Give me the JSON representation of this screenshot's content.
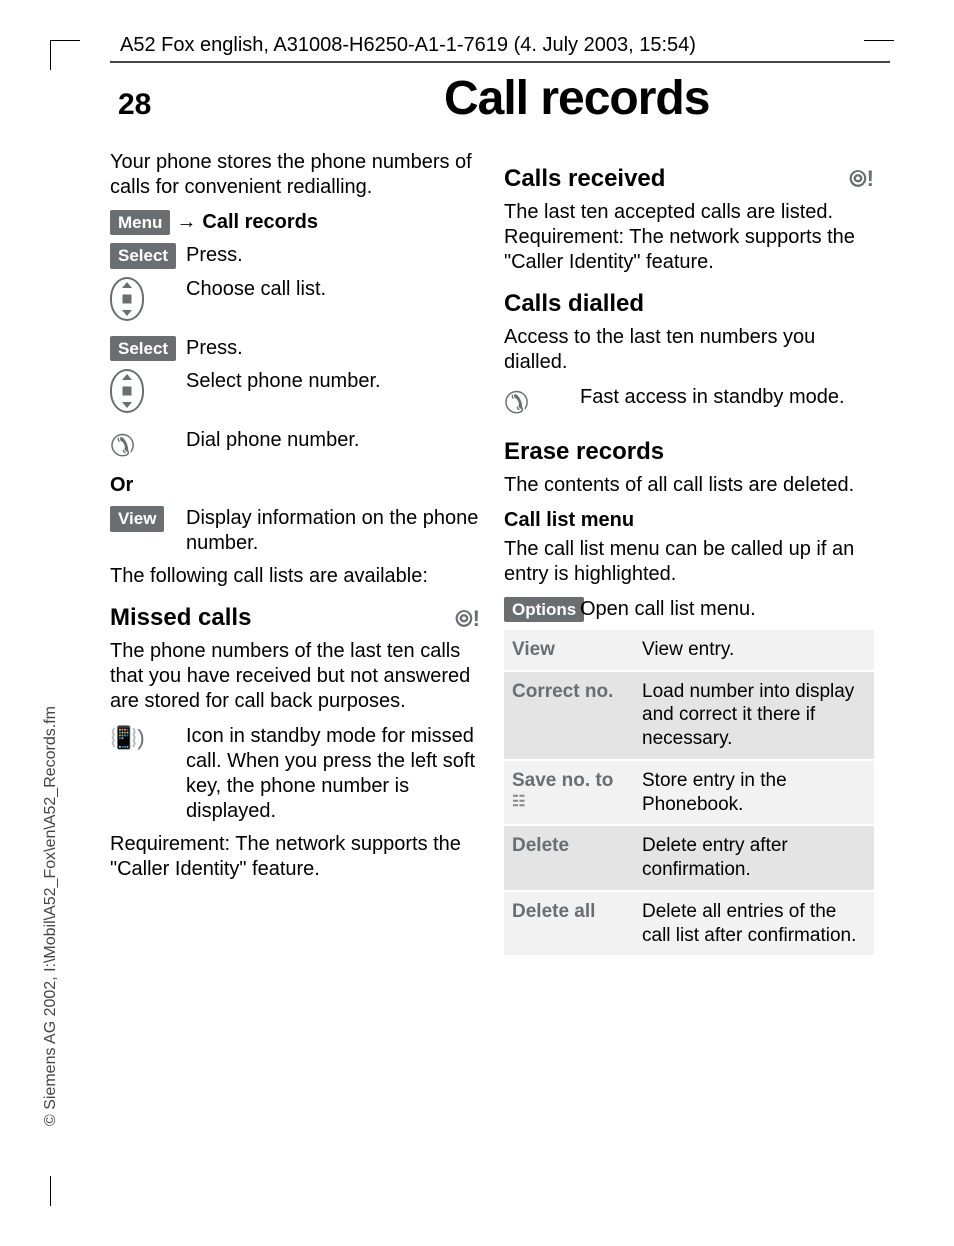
{
  "header": {
    "ref": "A52 Fox english, A31008-H6250-A1-1-7619 (4. July 2003, 15:54)",
    "page_number": "28",
    "title": "Call records"
  },
  "side": {
    "copyright": "© Siemens AG 2002, I:\\Mobil\\A52_Fox\\en\\A52_Records.fm"
  },
  "left": {
    "intro": "Your phone stores the phone numbers of calls for convenient redialling.",
    "menu_chip": "Menu",
    "menu_target": "Call records",
    "select_chip": "Select",
    "press": "Press.",
    "choose_list": "Choose call list.",
    "select_phone": "Select phone number.",
    "dial_phone": "Dial phone number.",
    "or": "Or",
    "view_chip": "View",
    "view_text": "Display information on the phone number.",
    "lists_intro": "The following call lists are available:",
    "missed_h": "Missed calls",
    "missed_body": "The phone numbers of the last ten calls that you have received but not answered are stored for call back purposes.",
    "missed_icon_desc": "Icon in standby mode for missed call. When you press the left soft key, the phone number is displayed.",
    "missed_req": "Requirement: The network supports the \"Caller Identity\" feature."
  },
  "right": {
    "received_h": "Calls received",
    "received_body": "The last ten accepted calls are listed. Requirement: The network supports the \"Caller Identity\" feature.",
    "dialled_h": "Calls dialled",
    "dialled_body": "Access to the last ten numbers you dialled.",
    "fast_access": "Fast access in standby mode.",
    "erase_h": "Erase records",
    "erase_body": "The contents of all call lists are deleted.",
    "calllist_h": "Call list menu",
    "calllist_body": "The call list menu can be called up if an entry is highlighted.",
    "options_chip": "Options",
    "options_text": "Open call list menu.",
    "table": [
      {
        "key": "View",
        "val": "View entry."
      },
      {
        "key": "Correct no.",
        "val": "Load number into display and correct it there if necessary."
      },
      {
        "key": "Save no. to",
        "val": "Store entry in the Phonebook.",
        "icon": true
      },
      {
        "key": "Delete",
        "val": "Delete entry after confirmation."
      },
      {
        "key": "Delete all",
        "val": "Delete all entries of the call list after confirmation."
      }
    ]
  }
}
